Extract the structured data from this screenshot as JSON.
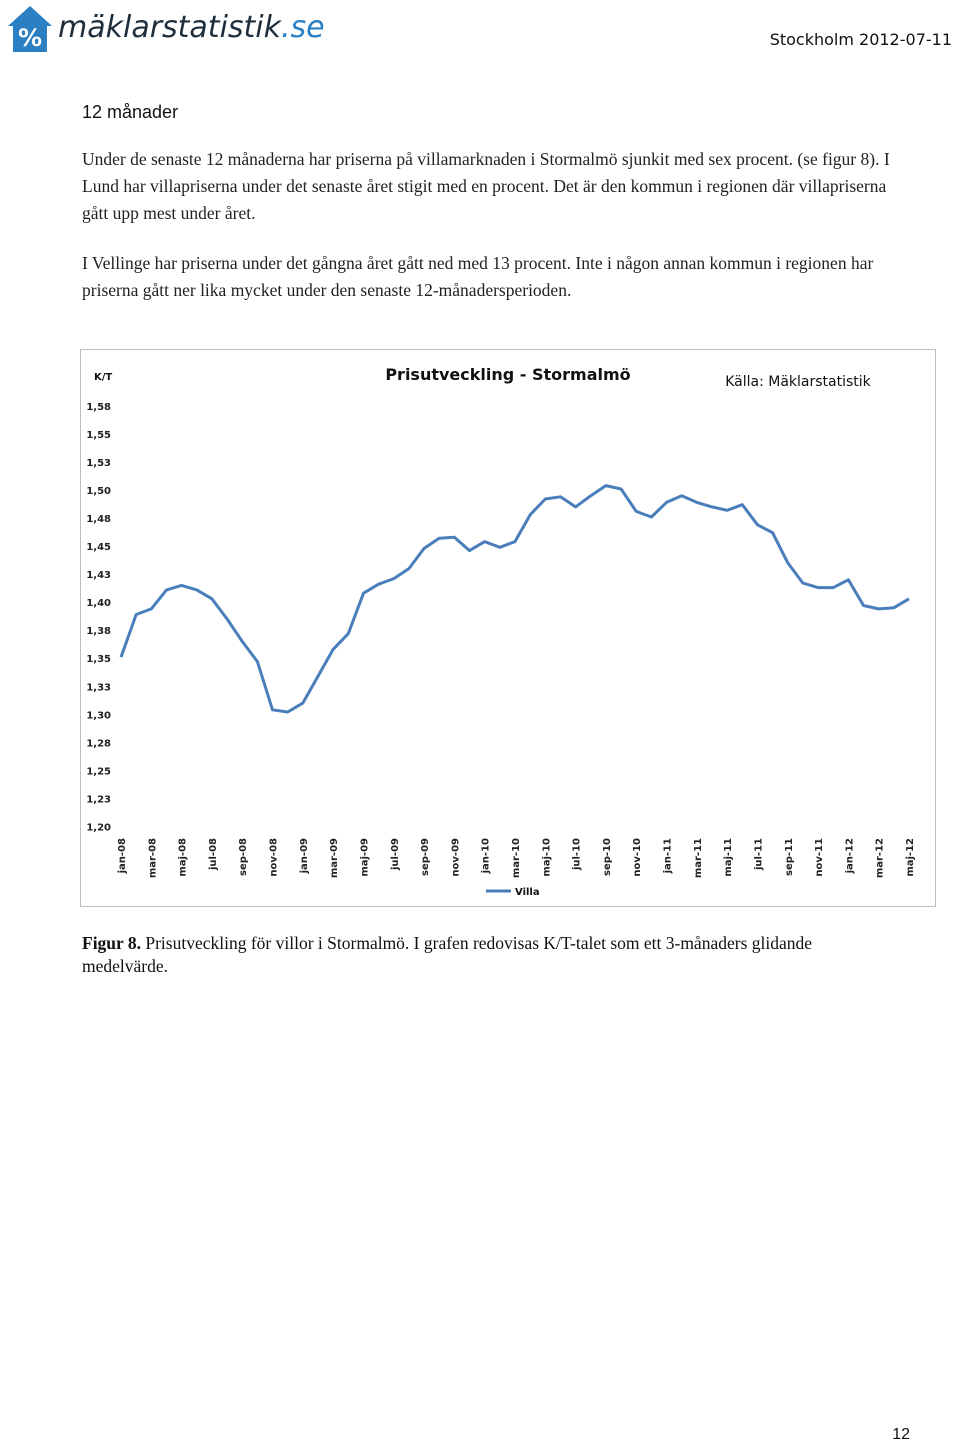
{
  "header": {
    "logo_symbol": "%",
    "logo_name": "mäklarstatistik",
    "logo_tld": ".se",
    "date": "Stockholm 2012-07-11"
  },
  "section": {
    "heading": "12 månader",
    "paragraph1": "Under de senaste 12 månaderna har priserna på villamarknaden i Stormalmö sjunkit med sex procent. (se figur 8). I Lund har villapriserna under det senaste året stigit med en procent. Det är den kommun i regionen där villapriserna gått upp mest under året.",
    "paragraph2": "I Vellinge har priserna under det gångna året gått ned med 13 procent. Inte i någon annan kommun i regionen har priserna gått ner lika mycket under den senaste 12-månadersperioden."
  },
  "caption": {
    "label": "Figur 8.",
    "text": " Prisutveckling för villor i Stormalmö. I grafen redovisas K/T-talet som ett 3-månaders glidande medelvärde."
  },
  "page_number": "12",
  "colors": {
    "series": "#4a7ebb",
    "logo_blue": "#2b7fc3",
    "logo_dark": "#1f2e3c"
  },
  "chart_data": {
    "type": "line",
    "title": "Prisutveckling - Stormalmö",
    "source": "Källa: Mäklarstatistik",
    "ylabel": "K/T",
    "ylim": [
      1.2,
      1.58
    ],
    "y_ticks": [
      "1,58",
      "1,55",
      "1,53",
      "1,50",
      "1,48",
      "1,45",
      "1,43",
      "1,40",
      "1,38",
      "1,35",
      "1,33",
      "1,30",
      "1,28",
      "1,25",
      "1,23",
      "1,20"
    ],
    "y_tick_values": [
      1.58,
      1.555,
      1.53,
      1.505,
      1.48,
      1.455,
      1.43,
      1.405,
      1.38,
      1.355,
      1.33,
      1.305,
      1.28,
      1.255,
      1.23,
      1.205
    ],
    "x_tick_labels": [
      "jan-08",
      "mar-08",
      "maj-08",
      "jul-08",
      "sep-08",
      "nov-08",
      "jan-09",
      "mar-09",
      "maj-09",
      "jul-09",
      "sep-09",
      "nov-09",
      "jan-10",
      "mar-10",
      "maj-10",
      "jul-10",
      "sep-10",
      "nov-10",
      "jan-11",
      "mar-11",
      "maj-11",
      "jul-11",
      "sep-11",
      "nov-11",
      "jan-12",
      "mar-12",
      "maj-12"
    ],
    "legend": "top-bottom",
    "legend_position": "bottom",
    "grid": false,
    "series": [
      {
        "name": "Villa",
        "values": [
          1.356,
          1.394,
          1.399,
          1.416,
          1.42,
          1.416,
          1.408,
          1.39,
          1.37,
          1.352,
          1.309,
          1.307,
          1.315,
          1.339,
          1.363,
          1.377,
          1.413,
          1.421,
          1.426,
          1.435,
          1.453,
          1.462,
          1.463,
          1.451,
          1.459,
          1.454,
          1.459,
          1.483,
          1.497,
          1.499,
          1.49,
          1.5,
          1.509,
          1.506,
          1.486,
          1.481,
          1.494,
          1.5,
          1.494,
          1.49,
          1.487,
          1.492,
          1.474,
          1.467,
          1.44,
          1.422,
          1.418,
          1.418,
          1.425,
          1.402,
          1.399,
          1.4,
          1.408
        ]
      }
    ]
  }
}
